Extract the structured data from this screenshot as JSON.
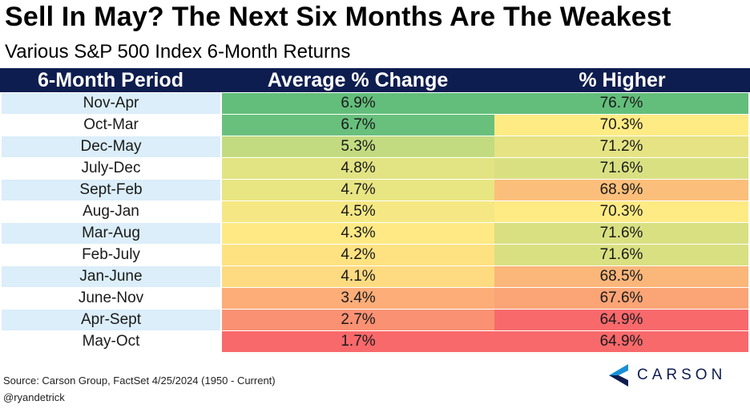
{
  "title": "Sell In May? The Next Six Months Are The Weakest",
  "subtitle": "Various S&P 500 Index 6-Month Returns",
  "source": "Source: Carson Group, FactSet 4/25/2024 (1950 - Current)",
  "handle": "@ryandetrick",
  "logo": {
    "text": "CARSON",
    "icon": "carson-chevron-logo",
    "colors": [
      "#1a8fd6",
      "#0e1d4f"
    ]
  },
  "colors": {
    "header_bg": "#0e1d4f",
    "header_text": "#ffffff",
    "alt_row": "#dbeef9"
  },
  "chart_data": {
    "type": "table",
    "columns": [
      "6-Month Period",
      "Average % Change",
      "% Higher"
    ],
    "rows": [
      {
        "period": "Nov-Apr",
        "avg_change": "6.9%",
        "pct_higher": "76.7%",
        "avg_color": "#63be7b",
        "higher_color": "#63be7b"
      },
      {
        "period": "Oct-Mar",
        "avg_change": "6.7%",
        "pct_higher": "70.3%",
        "avg_color": "#69c07c",
        "higher_color": "#ffeb84"
      },
      {
        "period": "Dec-May",
        "avg_change": "5.3%",
        "pct_higher": "71.2%",
        "avg_color": "#c3db80",
        "higher_color": "#e5e383"
      },
      {
        "period": "July-Dec",
        "avg_change": "4.8%",
        "pct_higher": "71.6%",
        "avg_color": "#e2e383",
        "higher_color": "#d9e082"
      },
      {
        "period": "Sept-Feb",
        "avg_change": "4.7%",
        "pct_higher": "68.9%",
        "avg_color": "#e8e583",
        "higher_color": "#fcbf7b"
      },
      {
        "period": "Aug-Jan",
        "avg_change": "4.5%",
        "pct_higher": "70.3%",
        "avg_color": "#f5e884",
        "higher_color": "#ffeb84"
      },
      {
        "period": "Mar-Aug",
        "avg_change": "4.3%",
        "pct_higher": "71.6%",
        "avg_color": "#ffe984",
        "higher_color": "#d9e082"
      },
      {
        "period": "Feb-July",
        "avg_change": "4.2%",
        "pct_higher": "71.6%",
        "avg_color": "#fee282",
        "higher_color": "#d9e082"
      },
      {
        "period": "Jan-June",
        "avg_change": "4.1%",
        "pct_higher": "68.5%",
        "avg_color": "#fedb81",
        "higher_color": "#fbb67a"
      },
      {
        "period": "June-Nov",
        "avg_change": "3.4%",
        "pct_higher": "67.6%",
        "avg_color": "#fcad78",
        "higher_color": "#fba476"
      },
      {
        "period": "Apr-Sept",
        "avg_change": "2.7%",
        "pct_higher": "64.9%",
        "avg_color": "#fa9173",
        "higher_color": "#f8696b"
      },
      {
        "period": "May-Oct",
        "avg_change": "1.7%",
        "pct_higher": "64.9%",
        "avg_color": "#f8696b",
        "higher_color": "#f8696b"
      }
    ]
  }
}
